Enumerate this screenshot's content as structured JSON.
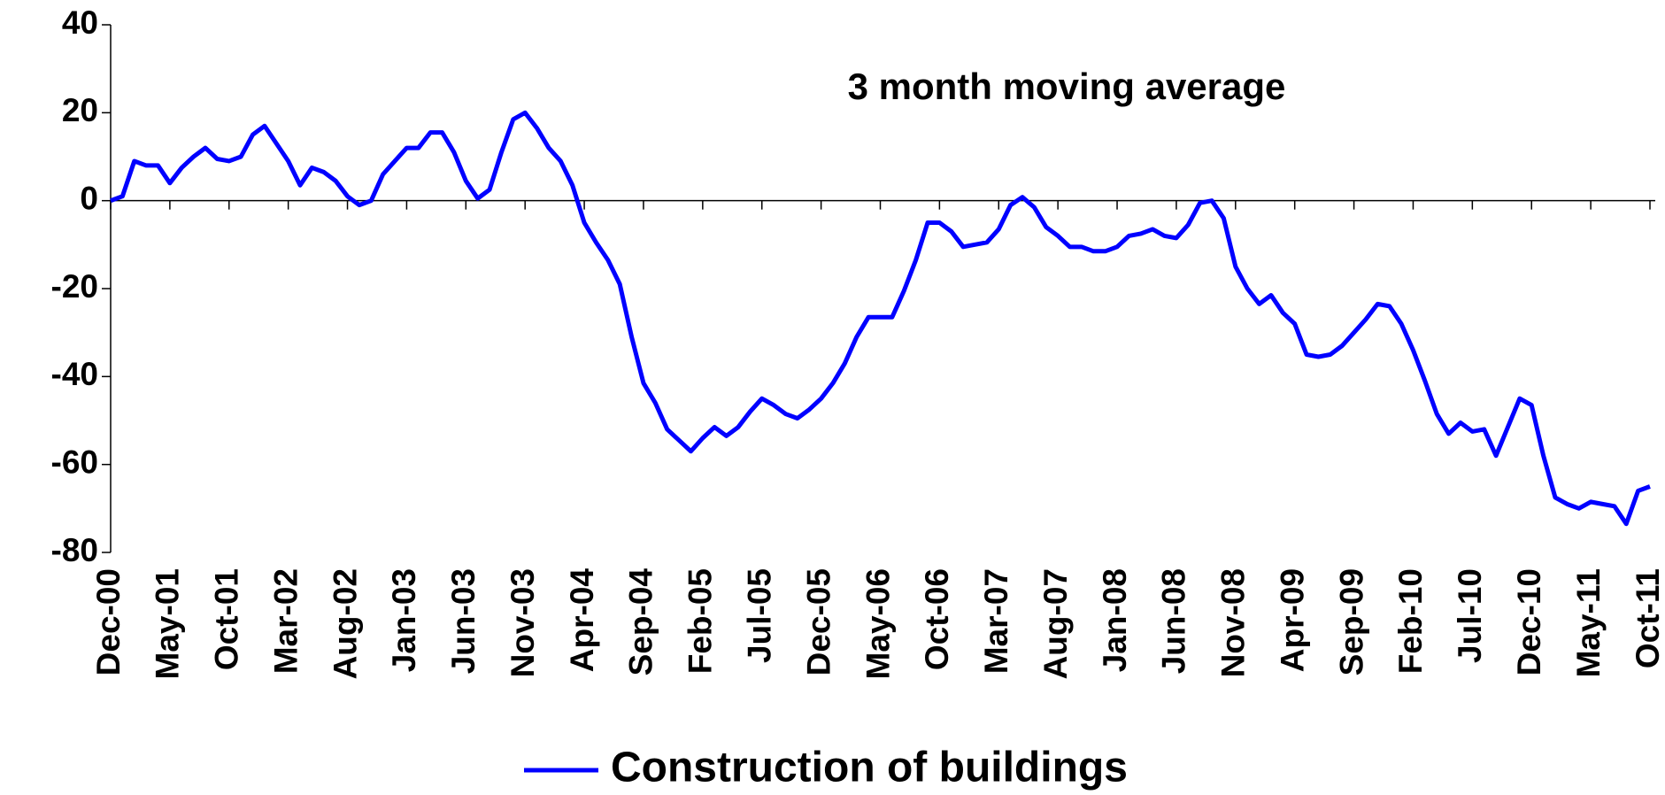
{
  "chart_data": {
    "type": "line",
    "annotation": "3 month moving average",
    "categories": [
      "Dec-00",
      null,
      null,
      null,
      null,
      "May-01",
      null,
      null,
      null,
      null,
      "Oct-01",
      null,
      null,
      null,
      null,
      "Mar-02",
      null,
      null,
      null,
      null,
      "Aug-02",
      null,
      null,
      null,
      null,
      "Jan-03",
      null,
      null,
      null,
      null,
      "Jun-03",
      null,
      null,
      null,
      null,
      "Nov-03",
      null,
      null,
      null,
      null,
      "Apr-04",
      null,
      null,
      null,
      null,
      "Sep-04",
      null,
      null,
      null,
      null,
      "Feb-05",
      null,
      null,
      null,
      null,
      "Jul-05",
      null,
      null,
      null,
      null,
      "Dec-05",
      null,
      null,
      null,
      null,
      "May-06",
      null,
      null,
      null,
      null,
      "Oct-06",
      null,
      null,
      null,
      null,
      "Mar-07",
      null,
      null,
      null,
      null,
      "Aug-07",
      null,
      null,
      null,
      null,
      "Jan-08",
      null,
      null,
      null,
      null,
      "Jun-08",
      null,
      null,
      null,
      null,
      "Nov-08",
      null,
      null,
      null,
      null,
      "Apr-09",
      null,
      null,
      null,
      null,
      "Sep-09",
      null,
      null,
      null,
      null,
      "Feb-10",
      null,
      null,
      null,
      null,
      "Jul-10",
      null,
      null,
      null,
      null,
      "Dec-10",
      null,
      null,
      null,
      null,
      "May-11",
      null,
      null,
      null,
      null,
      "Oct-11"
    ],
    "series": [
      {
        "name": "Construction of buildings",
        "color": "#0000ff",
        "values": [
          0,
          1,
          9,
          8,
          8,
          4,
          7.5,
          10,
          12,
          9.5,
          9,
          10,
          15,
          17,
          13,
          9,
          3.5,
          7.5,
          6.5,
          4.5,
          1,
          -1,
          0,
          6,
          9,
          12,
          12,
          15.5,
          15.5,
          11,
          4.5,
          0.5,
          2.5,
          11,
          18.5,
          20,
          16.5,
          12,
          9,
          3.5,
          -5,
          -9.5,
          -13.5,
          -19,
          -31,
          -41.5,
          -46,
          -52,
          -54.5,
          -57,
          -54,
          -51.5,
          -53.5,
          -51.5,
          -48,
          -45,
          -46.5,
          -48.5,
          -49.5,
          -47.5,
          -45,
          -41.5,
          -37,
          -31,
          -26.5,
          -26.5,
          -26.5,
          -20.5,
          -13.5,
          -5,
          -5,
          -7,
          -10.5,
          -10,
          -9.5,
          -6.5,
          -1,
          0.8,
          -1.5,
          -6,
          -8,
          -10.5,
          -10.5,
          -11.5,
          -11.5,
          -10.5,
          -8,
          -7.5,
          -6.5,
          -8,
          -8.5,
          -5.5,
          -0.5,
          0,
          -4,
          -15,
          -20,
          -23.5,
          -21.5,
          -25.5,
          -28,
          -35,
          -35.5,
          -35,
          -33,
          -30,
          -27,
          -23.5,
          -24,
          -28,
          -34,
          -41,
          -48.5,
          -53,
          -50.5,
          -52.5,
          -52,
          -58,
          -51.5,
          -45,
          -46.5,
          -58,
          -67.5,
          -69,
          -70,
          -68.5,
          -69,
          -69.5,
          -73.5,
          -66,
          -65
        ]
      }
    ],
    "ylim": [
      -80,
      40
    ],
    "yticks": [
      -80,
      -60,
      -40,
      -20,
      0,
      20,
      40
    ],
    "grid": false,
    "legend": "bottom"
  }
}
